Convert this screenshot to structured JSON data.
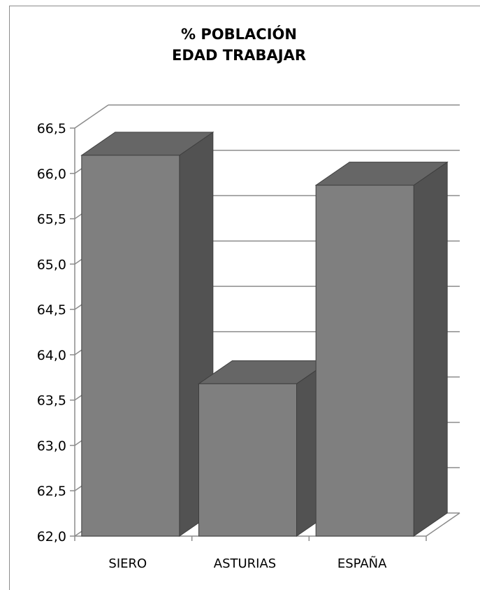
{
  "chart_data": {
    "type": "bar",
    "title": "% POBLACIÓN EDAD TRABAJAR",
    "title_lines": [
      "% POBLACIÓN",
      "EDAD TRABAJAR"
    ],
    "categories": [
      "SIERO",
      "ASTURIAS",
      "ESPAÑA"
    ],
    "values": [
      66.2,
      63.68,
      65.87
    ],
    "ylim": [
      62.0,
      66.5
    ],
    "yticks": [
      "62,0",
      "62,5",
      "63,0",
      "63,5",
      "64,0",
      "64,5",
      "65,0",
      "65,5",
      "66,0",
      "66,5"
    ],
    "ytick_values": [
      62.0,
      62.5,
      63.0,
      63.5,
      64.0,
      64.5,
      65.0,
      65.5,
      66.0,
      66.5
    ],
    "xlabel": "",
    "ylabel": "",
    "grid": true,
    "legend": "none",
    "style": "3d-column",
    "colors": {
      "front": "#7f7f7f",
      "top": "#666666",
      "side": "#525252",
      "grid": "#8c8c8c",
      "edge": "#3f3f3f"
    }
  }
}
